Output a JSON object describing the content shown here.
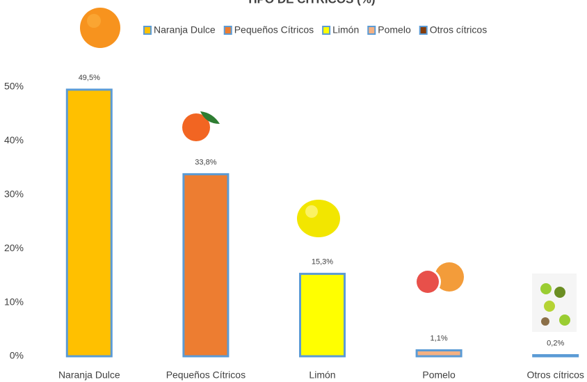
{
  "chart_data": {
    "type": "bar",
    "title": "TIPO DE CÍTRICOS (%)",
    "categories": [
      "Naranja Dulce",
      "Pequeños Cítricos",
      "Limón",
      "Pomelo",
      "Otros cítricos"
    ],
    "values": [
      49.5,
      33.8,
      15.3,
      1.1,
      0.2
    ],
    "value_labels": [
      "49,5%",
      "33,8%",
      "15,3%",
      "1,1%",
      "0,2%"
    ],
    "colors": [
      "#ffc000",
      "#ed7d31",
      "#ffff00",
      "#f4b183",
      "#843c0c"
    ],
    "ylim": [
      0,
      50
    ],
    "yticks": [
      {
        "value": 0,
        "label": "0%"
      },
      {
        "value": 10,
        "label": "10%"
      },
      {
        "value": 20,
        "label": "20%"
      },
      {
        "value": 30,
        "label": "30%"
      },
      {
        "value": 40,
        "label": "40%"
      },
      {
        "value": 50,
        "label": "50%"
      }
    ],
    "grid": false
  }
}
